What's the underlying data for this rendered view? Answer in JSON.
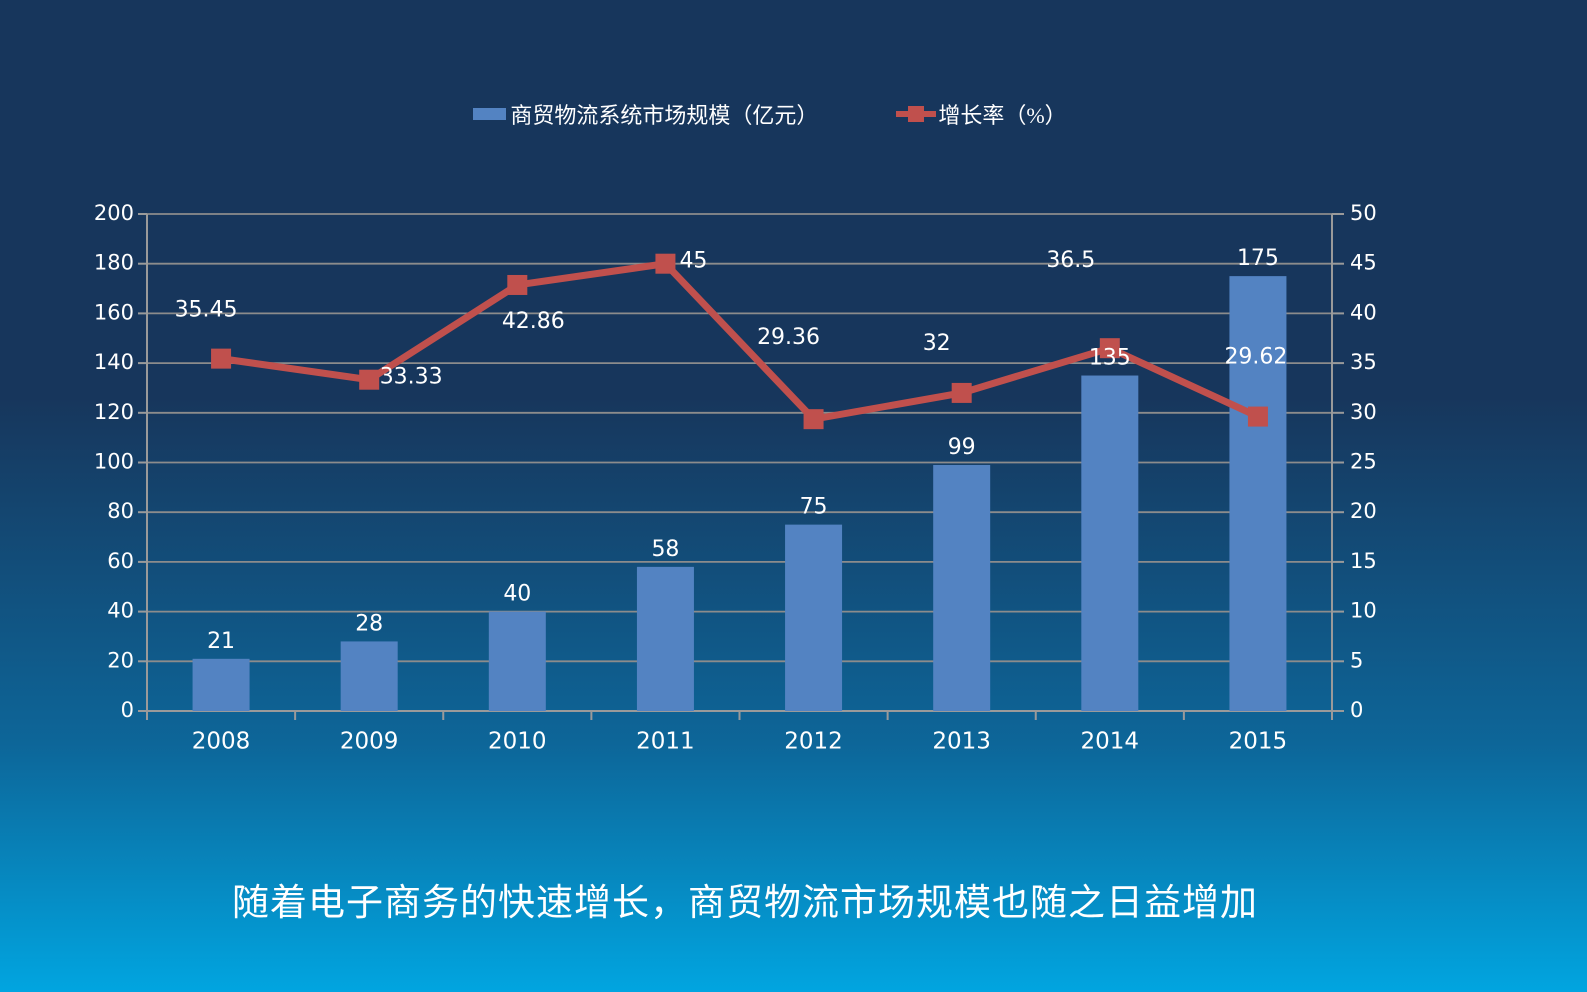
{
  "background": {
    "top_color": "#17365c",
    "bottom_color": "#01a5e0"
  },
  "legend": {
    "bar_label": "商贸物流系统市场规模（亿元）",
    "line_label": "增长率（%）"
  },
  "caption": "随着电子商务的快速增长，商贸物流市场规模也随之日益增加",
  "colors": {
    "bar": "#5383c2",
    "line": "#c0504d",
    "grid": "#8c8c8c",
    "axis": "#9a9a9a",
    "label_text": "#ffffff"
  },
  "chart_data": {
    "type": "combo-bar-line",
    "title": "",
    "categories": [
      "2008",
      "2009",
      "2010",
      "2011",
      "2012",
      "2013",
      "2014",
      "2015"
    ],
    "series": [
      {
        "name": "商贸物流系统市场规模（亿元）",
        "type": "bar",
        "axis": "left",
        "color": "#5383c2",
        "values": [
          21,
          28,
          40,
          58,
          75,
          99,
          135,
          175
        ]
      },
      {
        "name": "增长率（%）",
        "type": "line",
        "axis": "right",
        "color": "#c0504d",
        "values": [
          35.45,
          33.33,
          42.86,
          45,
          29.36,
          32,
          36.5,
          29.62
        ]
      }
    ],
    "left_axis": {
      "min": 0,
      "max": 200,
      "step": 20,
      "ticks": [
        "0",
        "20",
        "40",
        "60",
        "80",
        "100",
        "120",
        "140",
        "160",
        "180",
        "200"
      ]
    },
    "right_axis": {
      "min": 0,
      "max": 50,
      "step": 5,
      "ticks": [
        "0",
        "5",
        "10",
        "15",
        "20",
        "25",
        "30",
        "35",
        "40",
        "45",
        "50"
      ]
    },
    "grid": true,
    "legend_position": "top",
    "data_labels": true
  }
}
